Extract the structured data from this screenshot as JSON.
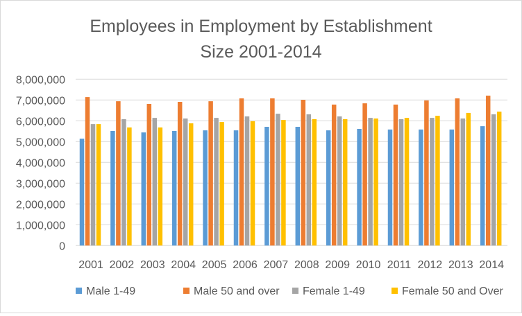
{
  "chart_data": {
    "type": "bar",
    "title": "Employees in Employment by Establishment Size 2001-2014",
    "title_lines": [
      "Employees in Employment by Establishment",
      "Size 2001-2014"
    ],
    "categories": [
      "2001",
      "2002",
      "2003",
      "2004",
      "2005",
      "2006",
      "2007",
      "2008",
      "2009",
      "2010",
      "2011",
      "2012",
      "2013",
      "2014"
    ],
    "series": [
      {
        "name": "Male 1-49",
        "color": "#5B9BD5",
        "values": [
          5140000,
          5510000,
          5440000,
          5510000,
          5540000,
          5540000,
          5710000,
          5710000,
          5540000,
          5610000,
          5580000,
          5580000,
          5580000,
          5740000
        ]
      },
      {
        "name": "Male 50 and over",
        "color": "#ED7D31",
        "values": [
          7140000,
          6940000,
          6810000,
          6910000,
          6940000,
          7080000,
          7080000,
          7010000,
          6780000,
          6840000,
          6780000,
          6980000,
          7080000,
          7210000
        ]
      },
      {
        "name": "Female 1-49",
        "color": "#A5A5A5",
        "values": [
          5840000,
          6080000,
          6140000,
          6110000,
          6140000,
          6210000,
          6340000,
          6310000,
          6210000,
          6140000,
          6080000,
          6140000,
          6110000,
          6310000
        ]
      },
      {
        "name": "Female 50 and Over",
        "color": "#FFC000",
        "values": [
          5840000,
          5680000,
          5680000,
          5880000,
          5940000,
          5980000,
          6040000,
          6080000,
          6080000,
          6110000,
          6140000,
          6240000,
          6380000,
          6440000
        ]
      }
    ],
    "ylim": [
      0,
      8000000
    ],
    "yticks": [
      "0",
      "1,000,000",
      "2,000,000",
      "3,000,000",
      "4,000,000",
      "5,000,000",
      "6,000,000",
      "7,000,000",
      "8,000,000"
    ],
    "xlabel": "",
    "ylabel": "",
    "grid": true,
    "legend": "bottom"
  }
}
